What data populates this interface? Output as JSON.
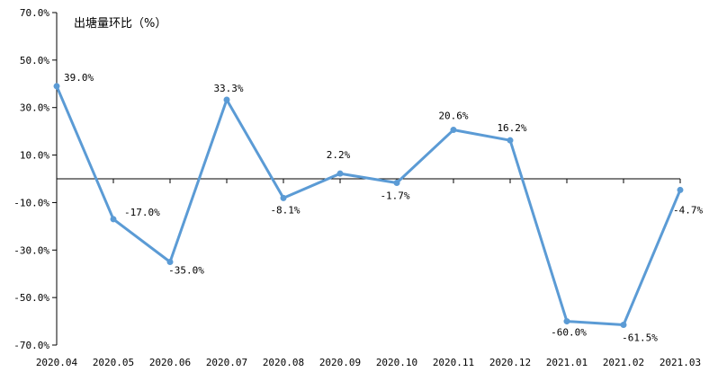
{
  "chart_data": {
    "type": "line",
    "title": "出塘量环比（%）",
    "categories": [
      "2020.04",
      "2020.05",
      "2020.06",
      "2020.07",
      "2020.08",
      "2020.09",
      "2020.10",
      "2020.11",
      "2020.12",
      "2021.01",
      "2021.02",
      "2021.03"
    ],
    "series": [
      {
        "values": [
          39.0,
          -17.0,
          -35.0,
          33.3,
          -8.1,
          2.2,
          -1.7,
          20.6,
          16.2,
          -60.0,
          -61.5,
          -4.7
        ],
        "labels": [
          "39.0%",
          "-17.0%",
          "-35.0%",
          "33.3%",
          "-8.1%",
          "2.2%",
          "-1.7%",
          "20.6%",
          "16.2%",
          "-60.0%",
          "-61.5%",
          "-4.7%"
        ],
        "color": "#5b9bd5"
      }
    ],
    "yticks": [
      70,
      50,
      30,
      10,
      -10,
      -30,
      -50,
      -70
    ],
    "ytick_labels": [
      "70.0%",
      "50.0%",
      "30.0%",
      "10.0%",
      "-10.0%",
      "-30.0%",
      "-50.0%",
      "-70.0%"
    ],
    "ylim": [
      -70,
      70
    ],
    "grid": false,
    "legend": "none"
  }
}
